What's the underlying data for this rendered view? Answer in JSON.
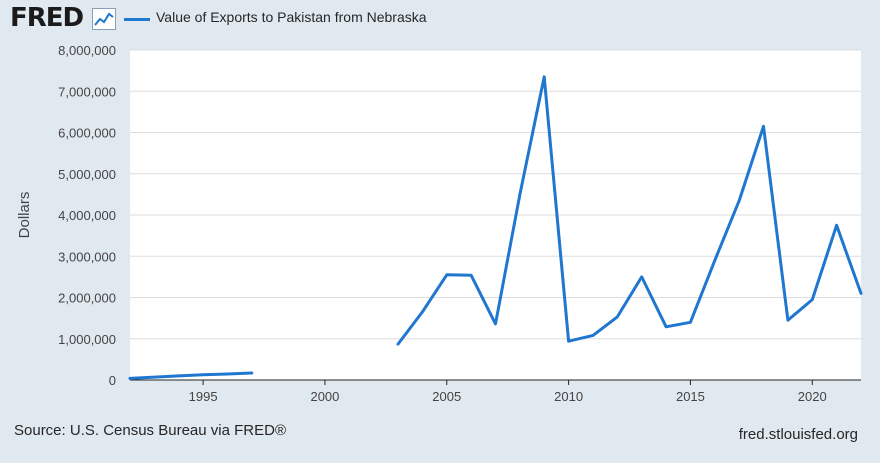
{
  "header": {
    "logo_text": "FRED",
    "logo_icon": "line-chart-icon"
  },
  "footer": {
    "source": "Source: U.S. Census Bureau via FRED®",
    "site": "fred.stlouisfed.org"
  },
  "colors": {
    "series": "#1f77d0",
    "background": "#e1e9f0",
    "plot_background": "#ffffff",
    "grid": "#dddddd"
  },
  "chart_data": {
    "type": "line",
    "title": "",
    "xlabel": "",
    "ylabel": "Dollars",
    "xlim": [
      1992,
      2022
    ],
    "ylim": [
      0,
      8000000
    ],
    "grid": true,
    "legend_position": "top-left",
    "x_ticks": [
      1995,
      2000,
      2005,
      2010,
      2015,
      2020
    ],
    "y_ticks": [
      {
        "value": 0,
        "label": "0"
      },
      {
        "value": 1000000,
        "label": "1,000,000"
      },
      {
        "value": 2000000,
        "label": "2,000,000"
      },
      {
        "value": 3000000,
        "label": "3,000,000"
      },
      {
        "value": 4000000,
        "label": "4,000,000"
      },
      {
        "value": 5000000,
        "label": "5,000,000"
      },
      {
        "value": 6000000,
        "label": "6,000,000"
      },
      {
        "value": 7000000,
        "label": "7,000,000"
      },
      {
        "value": 8000000,
        "label": "8,000,000"
      }
    ],
    "series": [
      {
        "name": "Value of Exports to Pakistan from Nebraska",
        "segments": [
          [
            {
              "x": 1992,
              "y": 40000
            },
            {
              "x": 1993,
              "y": 70000
            },
            {
              "x": 1994,
              "y": 100000
            },
            {
              "x": 1995,
              "y": 125000
            },
            {
              "x": 1996,
              "y": 145000
            },
            {
              "x": 1997,
              "y": 170000
            }
          ],
          [
            {
              "x": 2003,
              "y": 870000
            },
            {
              "x": 2004,
              "y": 1650000
            },
            {
              "x": 2005,
              "y": 2550000
            },
            {
              "x": 2006,
              "y": 2540000
            },
            {
              "x": 2007,
              "y": 1360000
            },
            {
              "x": 2008,
              "y": 4500000
            },
            {
              "x": 2009,
              "y": 7350000
            },
            {
              "x": 2010,
              "y": 940000
            },
            {
              "x": 2011,
              "y": 1080000
            },
            {
              "x": 2012,
              "y": 1530000
            },
            {
              "x": 2013,
              "y": 2500000
            },
            {
              "x": 2014,
              "y": 1290000
            },
            {
              "x": 2015,
              "y": 1400000
            },
            {
              "x": 2016,
              "y": 2900000
            },
            {
              "x": 2017,
              "y": 4350000
            },
            {
              "x": 2018,
              "y": 6150000
            },
            {
              "x": 2019,
              "y": 1450000
            },
            {
              "x": 2020,
              "y": 1950000
            },
            {
              "x": 2021,
              "y": 3750000
            },
            {
              "x": 2022,
              "y": 2100000
            }
          ]
        ]
      }
    ]
  }
}
